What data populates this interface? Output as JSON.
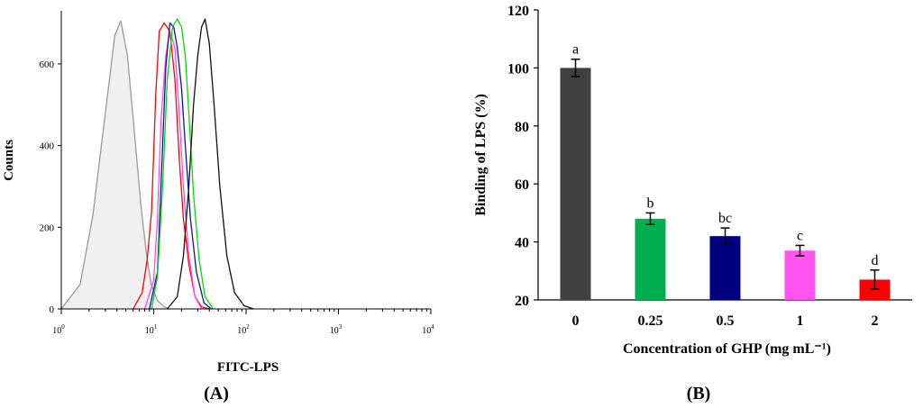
{
  "chart_data": [
    {
      "panel_label": "(A)",
      "type": "line",
      "subtype": "flow-cytometry-histogram",
      "xlabel": "FITC-LPS",
      "ylabel": "Counts",
      "x_scale": "log",
      "xlim": [
        1,
        10000
      ],
      "ylim": [
        0,
        730
      ],
      "x_tick_labels": [
        "10^0",
        "10^1",
        "10^2",
        "10^3",
        "10^4"
      ],
      "y_ticks": [
        0,
        200,
        400,
        600
      ],
      "series": [
        {
          "color": "#9a9a9a",
          "fill": "#f0f0f0",
          "x": [
            1,
            1.6,
            2.2,
            3.0,
            3.8,
            4.4,
            5.2,
            6.2,
            7.3,
            8.3,
            9.4,
            11,
            13,
            15
          ],
          "y": [
            0,
            60,
            230,
            480,
            670,
            705,
            620,
            430,
            250,
            140,
            60,
            20,
            5,
            0
          ]
        },
        {
          "color": "#ff0000",
          "x": [
            6,
            7.5,
            8.5,
            9.5,
            10.5,
            11.5,
            13,
            15,
            17,
            19,
            21,
            24,
            28,
            33,
            40
          ],
          "y": [
            0,
            40,
            120,
            240,
            520,
            680,
            700,
            680,
            560,
            360,
            220,
            110,
            30,
            5,
            0
          ]
        },
        {
          "color": "#ff44ff",
          "x": [
            8,
            10,
            11,
            12,
            13.5,
            15,
            17,
            19,
            21,
            24,
            28,
            33
          ],
          "y": [
            0,
            70,
            220,
            460,
            620,
            680,
            640,
            470,
            300,
            130,
            30,
            0
          ]
        },
        {
          "color": "#1010b0",
          "x": [
            9,
            11,
            12,
            13.5,
            15,
            16.5,
            18,
            20,
            22,
            25,
            29,
            35,
            42
          ],
          "y": [
            0,
            90,
            300,
            590,
            700,
            690,
            640,
            540,
            400,
            220,
            90,
            15,
            0
          ]
        },
        {
          "color": "#00dd00",
          "x": [
            9.5,
            11,
            12.5,
            14,
            16,
            18,
            20,
            22,
            24,
            27,
            31,
            36,
            44
          ],
          "y": [
            0,
            80,
            300,
            560,
            690,
            710,
            690,
            620,
            480,
            280,
            120,
            30,
            0
          ]
        },
        {
          "color": "#111111",
          "x": [
            14,
            18,
            21,
            24,
            27,
            30,
            33,
            36,
            40,
            45,
            52,
            62,
            75,
            95,
            120
          ],
          "y": [
            0,
            30,
            130,
            300,
            500,
            620,
            690,
            710,
            650,
            500,
            300,
            130,
            40,
            8,
            0
          ]
        }
      ]
    },
    {
      "panel_label": "(B)",
      "type": "bar",
      "xlabel": "Concentration of GHP (mg mL⁻¹)",
      "ylabel": "Binding of LPS (%)",
      "ylim": [
        20,
        120
      ],
      "y_ticks": [
        20,
        40,
        60,
        80,
        100,
        120
      ],
      "categories": [
        "0",
        "0.25",
        "0.5",
        "1",
        "2"
      ],
      "values": [
        100,
        48,
        42,
        37,
        27
      ],
      "errors": [
        3,
        2,
        2.8,
        1.8,
        3.3
      ],
      "letters": [
        "a",
        "b",
        "bc",
        "c",
        "d"
      ],
      "colors": [
        "#404040",
        "#00b050",
        "#000080",
        "#ff55ee",
        "#ff0000"
      ]
    }
  ]
}
